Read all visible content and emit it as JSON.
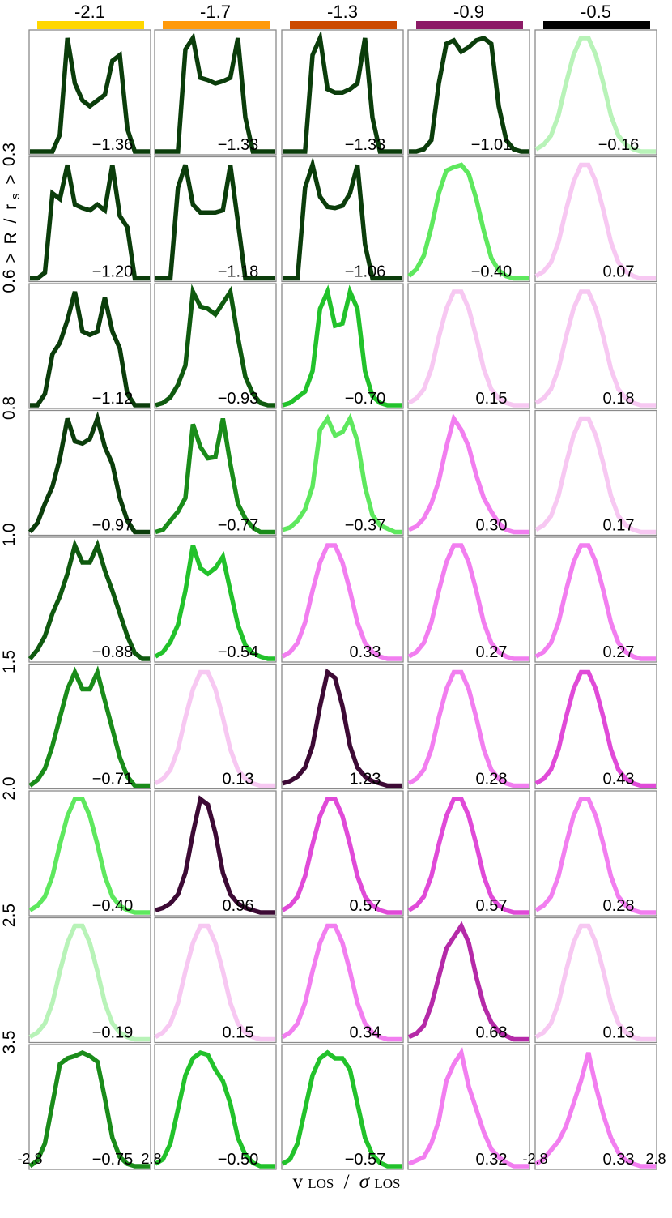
{
  "chart_data": {
    "type": "line",
    "xlabel": "v LOS / σ LOS",
    "xlabel_parts": {
      "v": "v",
      "v_sub": "LOS",
      "slash": "/",
      "sigma": "σ",
      "sigma_sub": "LOS"
    },
    "ylabel_parts": {
      "gt1": ">",
      "R": "R",
      "slash": "/",
      "r": "r",
      "r_sub": "s",
      "gt2": ">"
    },
    "x_ticks": {
      "left": "-2.8",
      "right": "2.8"
    },
    "xlim": [
      -2.8,
      2.8
    ],
    "grid": false,
    "column_titles": [
      "-2.1",
      "-1.7",
      "-1.3",
      "-0.9",
      "-0.5"
    ],
    "column_colors": [
      "#ffd700",
      "#ff9a0c",
      "#cc4a00",
      "#8c1a66",
      "#000000"
    ],
    "row_boundaries": [
      "0.3",
      "0.6",
      "0.8",
      "1.0",
      "1.5",
      "2.0",
      "2.5",
      "3.5"
    ],
    "colors": {
      "g1": "#0b3d0b",
      "g2": "#0f5a0f",
      "g3": "#1a8c1a",
      "g4": "#22c22b",
      "g5": "#5ee85e",
      "g6": "#b8f3b8",
      "p1": "#f7c8f2",
      "p2": "#f27ef0",
      "p3": "#e04ad8",
      "p4": "#b52aa8",
      "p5": "#3d0a35"
    },
    "kurtosis": [
      [
        "−1.36",
        "−1.33",
        "−1.33",
        "−1.01",
        "−0.16"
      ],
      [
        "−1.20",
        "−1.18",
        "−1.06",
        "−0.40",
        "0.07"
      ],
      [
        "−1.12",
        "−0.93",
        "−0.70",
        "0.15",
        "0.18"
      ],
      [
        "−0.97",
        "−0.77",
        "−0.37",
        "0.30",
        "0.17"
      ],
      [
        "−0.88",
        "−0.54",
        "0.33",
        "0.27",
        "0.27"
      ],
      [
        "−0.71",
        "0.13",
        "1.23",
        "0.28",
        "0.43"
      ],
      [
        "−0.40",
        "0.96",
        "0.57",
        "0.57",
        "0.28"
      ],
      [
        "−0.19",
        "0.15",
        "0.34",
        "0.68",
        "0.13"
      ],
      [
        "−0.75",
        "−0.50",
        "−0.57",
        "0.32",
        "0.33"
      ]
    ],
    "panel_colors": [
      [
        "g1",
        "g1",
        "g1",
        "g1",
        "g6"
      ],
      [
        "g1",
        "g1",
        "g1",
        "g5",
        "p1"
      ],
      [
        "g1",
        "g2",
        "g4",
        "p1",
        "p1"
      ],
      [
        "g1",
        "g3",
        "g5",
        "p2",
        "p1"
      ],
      [
        "g2",
        "g4",
        "p2",
        "p2",
        "p2"
      ],
      [
        "g3",
        "p1",
        "p5",
        "p2",
        "p3"
      ],
      [
        "g5",
        "p5",
        "p3",
        "p3",
        "p2"
      ],
      [
        "g6",
        "p1",
        "p2",
        "p4",
        "p1"
      ],
      [
        "g3",
        "g4",
        "g4",
        "p2",
        "p2"
      ]
    ],
    "profiles": [
      [
        [
          0,
          0,
          0,
          0,
          0.15,
          1.0,
          0.6,
          0.45,
          0.4,
          0.45,
          0.5,
          0.8,
          0.85,
          0.2,
          0,
          0,
          0
        ],
        [
          0,
          0,
          0,
          0,
          0.9,
          1.0,
          0.65,
          0.63,
          0.6,
          0.62,
          0.65,
          1.0,
          0.3,
          0,
          0,
          0,
          0
        ],
        [
          0,
          0,
          0,
          0,
          0.85,
          1.0,
          0.55,
          0.52,
          0.52,
          0.55,
          0.6,
          1.0,
          0.3,
          0,
          0,
          0,
          0
        ],
        [
          0,
          0,
          0.02,
          0.1,
          0.6,
          0.95,
          0.98,
          0.88,
          0.92,
          0.98,
          1.0,
          0.95,
          0.4,
          0.1,
          0.02,
          0,
          0
        ],
        [
          0.02,
          0.06,
          0.14,
          0.32,
          0.6,
          0.85,
          1.0,
          1.0,
          0.85,
          0.6,
          0.32,
          0.14,
          0.06,
          0.02,
          0,
          0,
          0
        ]
      ],
      [
        [
          0,
          0,
          0.05,
          0.75,
          0.7,
          1.0,
          0.65,
          0.62,
          0.6,
          0.65,
          0.6,
          1.0,
          0.55,
          0.45,
          0,
          0,
          0
        ],
        [
          0,
          0,
          0,
          0.8,
          1.0,
          0.65,
          0.58,
          0.58,
          0.58,
          0.6,
          1.0,
          0.5,
          0,
          0,
          0,
          0,
          0
        ],
        [
          0,
          0,
          0,
          0.8,
          1.0,
          0.72,
          0.63,
          0.62,
          0.64,
          0.75,
          1.0,
          0.3,
          0,
          0,
          0,
          0,
          0
        ],
        [
          0.02,
          0.08,
          0.2,
          0.45,
          0.75,
          0.95,
          0.98,
          1.0,
          0.92,
          0.7,
          0.42,
          0.18,
          0.07,
          0.02,
          0,
          0,
          0
        ],
        [
          0.02,
          0.06,
          0.14,
          0.32,
          0.6,
          0.85,
          1.0,
          1.0,
          0.85,
          0.6,
          0.32,
          0.14,
          0.06,
          0.02,
          0,
          0,
          0
        ]
      ],
      [
        [
          0,
          0,
          0.1,
          0.45,
          0.55,
          0.75,
          1.0,
          0.65,
          0.62,
          0.65,
          0.95,
          0.65,
          0.5,
          0.1,
          0,
          0,
          0
        ],
        [
          0,
          0.02,
          0.07,
          0.18,
          0.35,
          1.0,
          0.87,
          0.85,
          0.8,
          0.9,
          1.0,
          0.6,
          0.25,
          0.1,
          0.02,
          0,
          0
        ],
        [
          0,
          0.02,
          0.07,
          0.12,
          0.3,
          0.85,
          1.0,
          0.7,
          0.72,
          1.0,
          0.85,
          0.3,
          0.08,
          0.02,
          0,
          0,
          0
        ],
        [
          0.02,
          0.06,
          0.14,
          0.32,
          0.6,
          0.85,
          1.0,
          1.0,
          0.85,
          0.6,
          0.32,
          0.14,
          0.06,
          0.02,
          0,
          0,
          0
        ],
        [
          0.02,
          0.06,
          0.14,
          0.32,
          0.6,
          0.85,
          1.0,
          1.0,
          0.85,
          0.6,
          0.32,
          0.14,
          0.06,
          0.02,
          0,
          0,
          0
        ]
      ],
      [
        [
          0,
          0.08,
          0.25,
          0.4,
          0.65,
          1.0,
          0.8,
          0.78,
          0.82,
          1.0,
          0.75,
          0.6,
          0.3,
          0.1,
          0,
          0,
          0
        ],
        [
          0,
          0.02,
          0.1,
          0.18,
          0.3,
          0.95,
          0.75,
          0.65,
          0.66,
          1.0,
          0.6,
          0.25,
          0.12,
          0.04,
          0,
          0,
          0
        ],
        [
          0.02,
          0.04,
          0.1,
          0.2,
          0.4,
          0.9,
          1.0,
          0.85,
          0.88,
          1.0,
          0.8,
          0.4,
          0.15,
          0.06,
          0.03,
          0,
          0
        ],
        [
          0.02,
          0.05,
          0.12,
          0.25,
          0.45,
          0.75,
          1.0,
          0.9,
          0.75,
          0.5,
          0.3,
          0.18,
          0.08,
          0.02,
          0,
          0,
          0
        ],
        [
          0.02,
          0.06,
          0.14,
          0.32,
          0.6,
          0.85,
          1.0,
          1.0,
          0.85,
          0.6,
          0.32,
          0.14,
          0.06,
          0.02,
          0,
          0,
          0
        ]
      ],
      [
        [
          0,
          0.08,
          0.2,
          0.4,
          0.55,
          0.75,
          1.0,
          0.85,
          0.85,
          1.0,
          0.78,
          0.6,
          0.4,
          0.2,
          0.05,
          0,
          0
        ],
        [
          0.02,
          0.06,
          0.15,
          0.3,
          0.6,
          1.0,
          0.8,
          0.75,
          0.8,
          0.9,
          0.6,
          0.3,
          0.12,
          0.05,
          0.02,
          0,
          0
        ],
        [
          0.02,
          0.06,
          0.14,
          0.32,
          0.6,
          0.85,
          1.0,
          1.0,
          0.85,
          0.6,
          0.32,
          0.14,
          0.06,
          0.02,
          0,
          0,
          0
        ],
        [
          0.02,
          0.06,
          0.14,
          0.32,
          0.6,
          0.85,
          1.0,
          1.0,
          0.85,
          0.6,
          0.32,
          0.14,
          0.06,
          0.02,
          0,
          0,
          0
        ],
        [
          0.02,
          0.06,
          0.14,
          0.32,
          0.6,
          0.85,
          1.0,
          1.0,
          0.85,
          0.6,
          0.32,
          0.14,
          0.06,
          0.02,
          0,
          0,
          0
        ]
      ],
      [
        [
          0,
          0.05,
          0.15,
          0.35,
          0.6,
          0.85,
          1.0,
          0.85,
          0.85,
          1.0,
          0.75,
          0.5,
          0.25,
          0.08,
          0,
          0,
          0
        ],
        [
          0.02,
          0.06,
          0.14,
          0.32,
          0.6,
          0.85,
          1.0,
          1.0,
          0.85,
          0.6,
          0.32,
          0.14,
          0.06,
          0.02,
          0,
          0,
          0
        ],
        [
          0.02,
          0.04,
          0.08,
          0.16,
          0.35,
          0.7,
          1.0,
          0.95,
          0.7,
          0.35,
          0.16,
          0.08,
          0.04,
          0.02,
          0,
          0,
          0
        ],
        [
          0.02,
          0.06,
          0.14,
          0.32,
          0.6,
          0.85,
          1.0,
          1.0,
          0.85,
          0.6,
          0.32,
          0.14,
          0.06,
          0.02,
          0,
          0,
          0
        ],
        [
          0.02,
          0.06,
          0.14,
          0.32,
          0.6,
          0.85,
          1.0,
          1.0,
          0.85,
          0.6,
          0.32,
          0.14,
          0.06,
          0.02,
          0,
          0,
          0
        ]
      ],
      [
        [
          0.02,
          0.06,
          0.14,
          0.32,
          0.6,
          0.85,
          1.0,
          1.0,
          0.85,
          0.6,
          0.32,
          0.14,
          0.06,
          0.02,
          0,
          0,
          0
        ],
        [
          0.02,
          0.04,
          0.08,
          0.16,
          0.35,
          0.7,
          1.0,
          0.95,
          0.7,
          0.35,
          0.16,
          0.08,
          0.04,
          0.02,
          0,
          0,
          0
        ],
        [
          0.02,
          0.06,
          0.14,
          0.32,
          0.6,
          0.85,
          1.0,
          1.0,
          0.85,
          0.6,
          0.32,
          0.14,
          0.06,
          0.02,
          0,
          0,
          0
        ],
        [
          0.02,
          0.06,
          0.14,
          0.32,
          0.6,
          0.85,
          1.0,
          1.0,
          0.85,
          0.6,
          0.32,
          0.14,
          0.06,
          0.02,
          0,
          0,
          0
        ],
        [
          0.02,
          0.06,
          0.14,
          0.32,
          0.6,
          0.85,
          1.0,
          1.0,
          0.85,
          0.6,
          0.32,
          0.14,
          0.06,
          0.02,
          0,
          0,
          0
        ]
      ],
      [
        [
          0.02,
          0.06,
          0.14,
          0.32,
          0.6,
          0.85,
          1.0,
          1.0,
          0.85,
          0.6,
          0.32,
          0.14,
          0.06,
          0.02,
          0,
          0,
          0
        ],
        [
          0.02,
          0.06,
          0.14,
          0.32,
          0.6,
          0.85,
          1.0,
          1.0,
          0.85,
          0.6,
          0.32,
          0.14,
          0.06,
          0.02,
          0,
          0,
          0
        ],
        [
          0.02,
          0.06,
          0.14,
          0.32,
          0.6,
          0.85,
          1.0,
          1.0,
          0.85,
          0.6,
          0.32,
          0.14,
          0.06,
          0.02,
          0,
          0,
          0
        ],
        [
          0.02,
          0.05,
          0.12,
          0.3,
          0.55,
          0.8,
          0.9,
          1.0,
          0.85,
          0.55,
          0.3,
          0.15,
          0.07,
          0.03,
          0,
          0,
          0
        ],
        [
          0.02,
          0.06,
          0.14,
          0.32,
          0.6,
          0.85,
          1.0,
          1.0,
          0.85,
          0.6,
          0.32,
          0.14,
          0.06,
          0.02,
          0,
          0,
          0
        ]
      ],
      [
        [
          0,
          0.05,
          0.2,
          0.55,
          0.9,
          0.95,
          0.97,
          1.0,
          0.97,
          0.92,
          0.6,
          0.25,
          0.08,
          0.02,
          0,
          0,
          0
        ],
        [
          0.02,
          0.06,
          0.2,
          0.5,
          0.8,
          0.95,
          1.0,
          0.98,
          0.85,
          0.75,
          0.55,
          0.25,
          0.1,
          0.03,
          0,
          0,
          0
        ],
        [
          0.02,
          0.06,
          0.2,
          0.5,
          0.8,
          0.95,
          1.0,
          0.95,
          0.95,
          0.85,
          0.55,
          0.25,
          0.1,
          0.03,
          0,
          0,
          0
        ],
        [
          0.02,
          0.05,
          0.08,
          0.2,
          0.4,
          0.75,
          0.9,
          1.0,
          0.7,
          0.5,
          0.3,
          0.15,
          0.08,
          0.03,
          0,
          0,
          0
        ],
        [
          0.02,
          0.06,
          0.14,
          0.22,
          0.35,
          0.55,
          0.75,
          1.0,
          0.7,
          0.45,
          0.25,
          0.12,
          0.05,
          0.02,
          0,
          0,
          0
        ]
      ]
    ]
  }
}
